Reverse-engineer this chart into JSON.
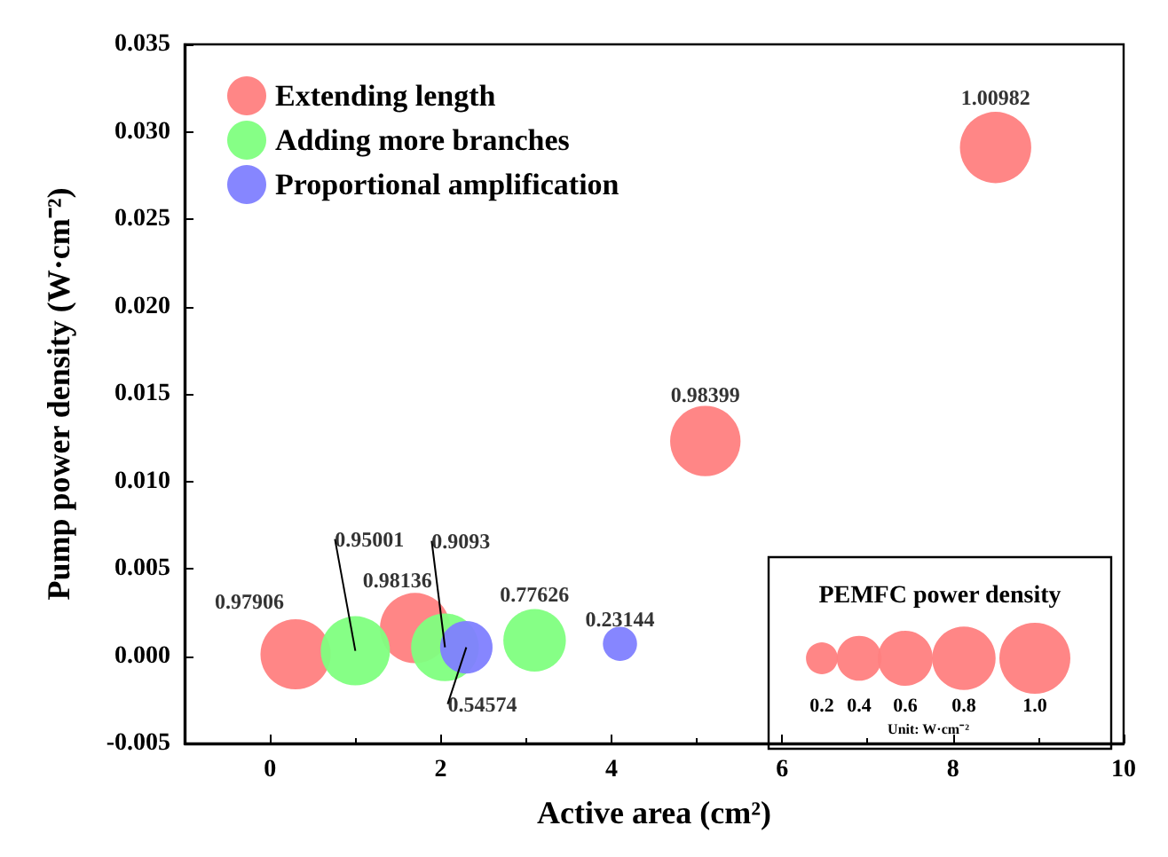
{
  "chart_data": {
    "type": "bubble",
    "xlabel": "Active area (cm²)",
    "ylabel": "Pump power density (W·cm⁻²)",
    "legend_title": "PEMFC power density",
    "size_legend": [
      {
        "value": 0.2,
        "label": "0.2"
      },
      {
        "value": 0.4,
        "label": "0.4"
      },
      {
        "value": 0.6,
        "label": "0.6"
      },
      {
        "value": 0.8,
        "label": "0.8"
      },
      {
        "value": 1,
        "label": "1.0"
      }
    ],
    "xlim": [
      -1,
      10
    ],
    "xticks": [
      0,
      2,
      4,
      6,
      8,
      10
    ],
    "ylim": [
      -0.005,
      0.035
    ],
    "yticks": [
      {
        "value": -0.005,
        "label": "-0.005"
      },
      {
        "value": 0,
        "label": "0.000"
      },
      {
        "value": 0.005,
        "label": "0.005"
      },
      {
        "value": 0.01,
        "label": "0.010"
      },
      {
        "value": 0.015,
        "label": "0.015"
      },
      {
        "value": 0.02,
        "label": "0.020"
      },
      {
        "value": 0.025,
        "label": "0.025"
      },
      {
        "value": 0.03,
        "label": "0.030"
      },
      {
        "value": 0.035,
        "label": "0.035"
      }
    ],
    "grid": false,
    "legend": "top left",
    "series": [
      {
        "name": "Extending length",
        "color": "#ff8080",
        "x": [
          0.3,
          1.7,
          5.1,
          8.5
        ],
        "values": [
          0.0001,
          0.0016,
          0.0123,
          0.0291
        ],
        "sizes": [
          0.97906,
          0.98136,
          0.98399,
          1.00982
        ]
      },
      {
        "name": "Adding more branches",
        "color": "#80ff80",
        "x": [
          1.0,
          2.05,
          3.1
        ],
        "values": [
          0.0003,
          0.0005,
          0.0009
        ],
        "sizes": [
          0.95001,
          0.9093,
          0.77626
        ]
      },
      {
        "name": "Proportional amplification",
        "color": "#8080ff",
        "x": [
          2.3,
          4.1
        ],
        "values": [
          0.0005,
          0.0007
        ],
        "sizes": [
          0.54574,
          0.23144
        ]
      }
    ],
    "annotations": [
      {
        "text": "0.97906",
        "x": 0.3,
        "y": 0.0001
      },
      {
        "text": "0.98136",
        "x": 1.7,
        "y": 0.0016
      },
      {
        "text": "0.98399",
        "x": 5.1,
        "y": 0.0123
      },
      {
        "text": "1.00982",
        "x": 8.5,
        "y": 0.0291
      },
      {
        "text": "0.95001",
        "x": 1.0,
        "y": 0.0003
      },
      {
        "text": "0.9093",
        "x": 2.05,
        "y": 0.0005
      },
      {
        "text": "0.77626",
        "x": 3.1,
        "y": 0.0009
      },
      {
        "text": "0.54574",
        "x": 2.3,
        "y": 0.0005
      },
      {
        "text": "0.23144",
        "x": 4.1,
        "y": 0.0007
      },
      "Unit: W·cm⁻²"
    ]
  }
}
